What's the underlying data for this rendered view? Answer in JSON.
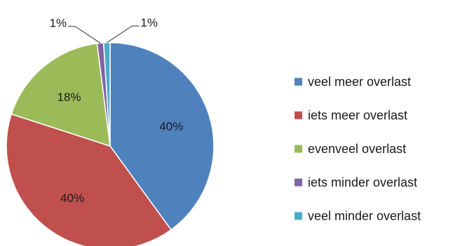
{
  "chart_data": {
    "type": "pie",
    "title": "",
    "legend_position": "right",
    "slices": [
      {
        "label": "veel meer overlast",
        "value": 40,
        "value_label": "40%",
        "color": "#4f81bd"
      },
      {
        "label": "iets meer overlast",
        "value": 40,
        "value_label": "40%",
        "color": "#c0504d"
      },
      {
        "label": "evenveel overlast",
        "value": 18,
        "value_label": "18%",
        "color": "#9bbb59"
      },
      {
        "label": "iets minder overlast",
        "value": 1,
        "value_label": "1%",
        "color": "#8064a2"
      },
      {
        "label": "veel minder overlast",
        "value": 1,
        "value_label": "1%",
        "color": "#4bacc6"
      }
    ]
  }
}
